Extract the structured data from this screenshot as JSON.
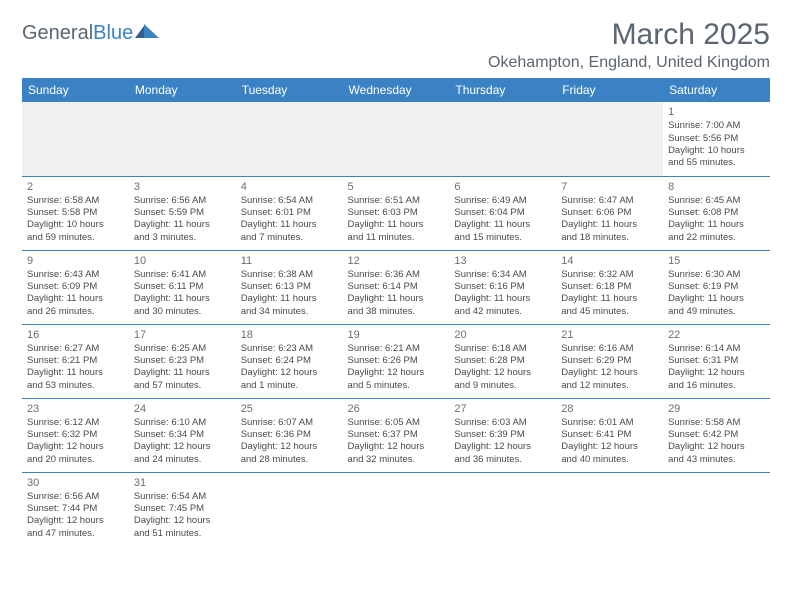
{
  "logo": {
    "text1": "General",
    "text2": "Blue"
  },
  "title": "March 2025",
  "location": "Okehampton, England, United Kingdom",
  "colors": {
    "header_bg": "#3b82c4",
    "header_text": "#ffffff",
    "text": "#4a4a4a",
    "logo_gray": "#5a6570",
    "logo_blue": "#3b82c4",
    "blank_bg": "#eef0f2",
    "border": "#3b82c4"
  },
  "weekdays": [
    "Sunday",
    "Monday",
    "Tuesday",
    "Wednesday",
    "Thursday",
    "Friday",
    "Saturday"
  ],
  "weeks": [
    [
      null,
      null,
      null,
      null,
      null,
      null,
      {
        "n": "1",
        "sr": "Sunrise: 7:00 AM",
        "ss": "Sunset: 5:56 PM",
        "dl1": "Daylight: 10 hours",
        "dl2": "and 55 minutes."
      }
    ],
    [
      {
        "n": "2",
        "sr": "Sunrise: 6:58 AM",
        "ss": "Sunset: 5:58 PM",
        "dl1": "Daylight: 10 hours",
        "dl2": "and 59 minutes."
      },
      {
        "n": "3",
        "sr": "Sunrise: 6:56 AM",
        "ss": "Sunset: 5:59 PM",
        "dl1": "Daylight: 11 hours",
        "dl2": "and 3 minutes."
      },
      {
        "n": "4",
        "sr": "Sunrise: 6:54 AM",
        "ss": "Sunset: 6:01 PM",
        "dl1": "Daylight: 11 hours",
        "dl2": "and 7 minutes."
      },
      {
        "n": "5",
        "sr": "Sunrise: 6:51 AM",
        "ss": "Sunset: 6:03 PM",
        "dl1": "Daylight: 11 hours",
        "dl2": "and 11 minutes."
      },
      {
        "n": "6",
        "sr": "Sunrise: 6:49 AM",
        "ss": "Sunset: 6:04 PM",
        "dl1": "Daylight: 11 hours",
        "dl2": "and 15 minutes."
      },
      {
        "n": "7",
        "sr": "Sunrise: 6:47 AM",
        "ss": "Sunset: 6:06 PM",
        "dl1": "Daylight: 11 hours",
        "dl2": "and 18 minutes."
      },
      {
        "n": "8",
        "sr": "Sunrise: 6:45 AM",
        "ss": "Sunset: 6:08 PM",
        "dl1": "Daylight: 11 hours",
        "dl2": "and 22 minutes."
      }
    ],
    [
      {
        "n": "9",
        "sr": "Sunrise: 6:43 AM",
        "ss": "Sunset: 6:09 PM",
        "dl1": "Daylight: 11 hours",
        "dl2": "and 26 minutes."
      },
      {
        "n": "10",
        "sr": "Sunrise: 6:41 AM",
        "ss": "Sunset: 6:11 PM",
        "dl1": "Daylight: 11 hours",
        "dl2": "and 30 minutes."
      },
      {
        "n": "11",
        "sr": "Sunrise: 6:38 AM",
        "ss": "Sunset: 6:13 PM",
        "dl1": "Daylight: 11 hours",
        "dl2": "and 34 minutes."
      },
      {
        "n": "12",
        "sr": "Sunrise: 6:36 AM",
        "ss": "Sunset: 6:14 PM",
        "dl1": "Daylight: 11 hours",
        "dl2": "and 38 minutes."
      },
      {
        "n": "13",
        "sr": "Sunrise: 6:34 AM",
        "ss": "Sunset: 6:16 PM",
        "dl1": "Daylight: 11 hours",
        "dl2": "and 42 minutes."
      },
      {
        "n": "14",
        "sr": "Sunrise: 6:32 AM",
        "ss": "Sunset: 6:18 PM",
        "dl1": "Daylight: 11 hours",
        "dl2": "and 45 minutes."
      },
      {
        "n": "15",
        "sr": "Sunrise: 6:30 AM",
        "ss": "Sunset: 6:19 PM",
        "dl1": "Daylight: 11 hours",
        "dl2": "and 49 minutes."
      }
    ],
    [
      {
        "n": "16",
        "sr": "Sunrise: 6:27 AM",
        "ss": "Sunset: 6:21 PM",
        "dl1": "Daylight: 11 hours",
        "dl2": "and 53 minutes."
      },
      {
        "n": "17",
        "sr": "Sunrise: 6:25 AM",
        "ss": "Sunset: 6:23 PM",
        "dl1": "Daylight: 11 hours",
        "dl2": "and 57 minutes."
      },
      {
        "n": "18",
        "sr": "Sunrise: 6:23 AM",
        "ss": "Sunset: 6:24 PM",
        "dl1": "Daylight: 12 hours",
        "dl2": "and 1 minute."
      },
      {
        "n": "19",
        "sr": "Sunrise: 6:21 AM",
        "ss": "Sunset: 6:26 PM",
        "dl1": "Daylight: 12 hours",
        "dl2": "and 5 minutes."
      },
      {
        "n": "20",
        "sr": "Sunrise: 6:18 AM",
        "ss": "Sunset: 6:28 PM",
        "dl1": "Daylight: 12 hours",
        "dl2": "and 9 minutes."
      },
      {
        "n": "21",
        "sr": "Sunrise: 6:16 AM",
        "ss": "Sunset: 6:29 PM",
        "dl1": "Daylight: 12 hours",
        "dl2": "and 12 minutes."
      },
      {
        "n": "22",
        "sr": "Sunrise: 6:14 AM",
        "ss": "Sunset: 6:31 PM",
        "dl1": "Daylight: 12 hours",
        "dl2": "and 16 minutes."
      }
    ],
    [
      {
        "n": "23",
        "sr": "Sunrise: 6:12 AM",
        "ss": "Sunset: 6:32 PM",
        "dl1": "Daylight: 12 hours",
        "dl2": "and 20 minutes."
      },
      {
        "n": "24",
        "sr": "Sunrise: 6:10 AM",
        "ss": "Sunset: 6:34 PM",
        "dl1": "Daylight: 12 hours",
        "dl2": "and 24 minutes."
      },
      {
        "n": "25",
        "sr": "Sunrise: 6:07 AM",
        "ss": "Sunset: 6:36 PM",
        "dl1": "Daylight: 12 hours",
        "dl2": "and 28 minutes."
      },
      {
        "n": "26",
        "sr": "Sunrise: 6:05 AM",
        "ss": "Sunset: 6:37 PM",
        "dl1": "Daylight: 12 hours",
        "dl2": "and 32 minutes."
      },
      {
        "n": "27",
        "sr": "Sunrise: 6:03 AM",
        "ss": "Sunset: 6:39 PM",
        "dl1": "Daylight: 12 hours",
        "dl2": "and 36 minutes."
      },
      {
        "n": "28",
        "sr": "Sunrise: 6:01 AM",
        "ss": "Sunset: 6:41 PM",
        "dl1": "Daylight: 12 hours",
        "dl2": "and 40 minutes."
      },
      {
        "n": "29",
        "sr": "Sunrise: 5:58 AM",
        "ss": "Sunset: 6:42 PM",
        "dl1": "Daylight: 12 hours",
        "dl2": "and 43 minutes."
      }
    ],
    [
      {
        "n": "30",
        "sr": "Sunrise: 6:56 AM",
        "ss": "Sunset: 7:44 PM",
        "dl1": "Daylight: 12 hours",
        "dl2": "and 47 minutes."
      },
      {
        "n": "31",
        "sr": "Sunrise: 6:54 AM",
        "ss": "Sunset: 7:45 PM",
        "dl1": "Daylight: 12 hours",
        "dl2": "and 51 minutes."
      },
      null,
      null,
      null,
      null,
      null
    ]
  ]
}
